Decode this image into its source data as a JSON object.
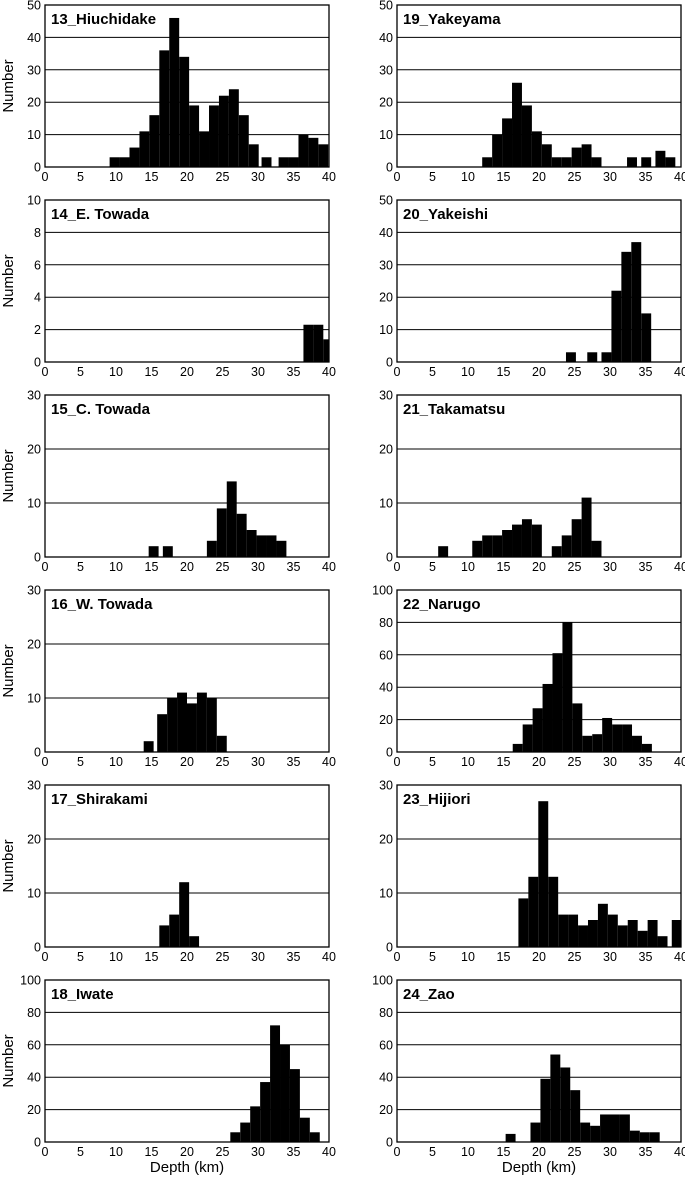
{
  "figure": {
    "ylabel": "Number",
    "xlabel": "Depth (km)",
    "x_ticks": [
      0,
      5,
      10,
      15,
      20,
      25,
      30,
      35,
      40
    ],
    "bar_color": "#000000",
    "grid_color": "#000000"
  },
  "chart_data": [
    {
      "type": "bar",
      "title": "13_Hiuchidake",
      "bin_width_km": 1.4,
      "xlim": [
        0,
        40
      ],
      "ylim": [
        0,
        50
      ],
      "y_ticks": [
        0,
        10,
        20,
        30,
        40,
        50
      ],
      "grid": true,
      "x": [
        9.8,
        11.2,
        12.6,
        14.0,
        15.4,
        16.8,
        18.2,
        19.6,
        21.0,
        22.4,
        23.8,
        25.2,
        26.6,
        28.0,
        29.4,
        31.2,
        33.6,
        35.0,
        36.4,
        37.8,
        39.2
      ],
      "values": [
        3,
        3,
        6,
        11,
        16,
        36,
        46,
        34,
        19,
        11,
        19,
        22,
        24,
        16,
        7,
        3,
        3,
        3,
        10,
        9,
        7
      ]
    },
    {
      "type": "bar",
      "title": "19_Yakeyama",
      "bin_width_km": 1.4,
      "xlim": [
        0,
        40
      ],
      "ylim": [
        0,
        50
      ],
      "y_ticks": [
        0,
        10,
        20,
        30,
        40,
        50
      ],
      "grid": true,
      "x": [
        12.7,
        14.1,
        15.5,
        16.9,
        18.3,
        19.7,
        21.1,
        22.5,
        23.9,
        25.3,
        26.7,
        28.1,
        33.1,
        35.1,
        37.1,
        38.5
      ],
      "values": [
        3,
        10,
        15,
        26,
        19,
        11,
        7,
        3,
        3,
        6,
        7,
        3,
        3,
        3,
        5,
        3
      ]
    },
    {
      "type": "bar",
      "title": "14_E. Towada",
      "bin_width_km": 1.4,
      "xlim": [
        0,
        40
      ],
      "ylim": [
        0,
        10
      ],
      "y_ticks": [
        0,
        2,
        4,
        6,
        8,
        10
      ],
      "grid": true,
      "x": [
        37.1,
        38.5,
        39.9
      ],
      "values": [
        2.3,
        2.3,
        1.4
      ]
    },
    {
      "type": "bar",
      "title": "20_Yakeishi",
      "bin_width_km": 1.4,
      "xlim": [
        0,
        40
      ],
      "ylim": [
        0,
        50
      ],
      "y_ticks": [
        0,
        10,
        20,
        30,
        40,
        50
      ],
      "grid": true,
      "x": [
        24.5,
        27.5,
        29.5,
        30.9,
        32.3,
        33.7,
        35.1
      ],
      "values": [
        3,
        3,
        3,
        22,
        34,
        37,
        15
      ]
    },
    {
      "type": "bar",
      "title": "15_C. Towada",
      "bin_width_km": 1.4,
      "xlim": [
        0,
        40
      ],
      "ylim": [
        0,
        30
      ],
      "y_ticks": [
        0,
        10,
        20,
        30
      ],
      "grid": true,
      "x": [
        15.3,
        17.3,
        23.5,
        24.9,
        26.3,
        27.7,
        29.1,
        30.5,
        31.9,
        33.3
      ],
      "values": [
        2,
        2,
        3,
        9,
        14,
        8,
        5,
        4,
        4,
        3
      ]
    },
    {
      "type": "bar",
      "title": "21_Takamatsu",
      "bin_width_km": 1.4,
      "xlim": [
        0,
        40
      ],
      "ylim": [
        0,
        30
      ],
      "y_ticks": [
        0,
        10,
        20,
        30
      ],
      "grid": true,
      "x": [
        6.5,
        11.3,
        12.7,
        14.1,
        15.5,
        16.9,
        18.3,
        19.7,
        22.5,
        23.9,
        25.3,
        26.7,
        28.1
      ],
      "values": [
        2,
        3,
        4,
        4,
        5,
        6,
        7,
        6,
        2,
        4,
        7,
        11,
        3
      ]
    },
    {
      "type": "bar",
      "title": "16_W. Towada",
      "bin_width_km": 1.4,
      "xlim": [
        0,
        40
      ],
      "ylim": [
        0,
        30
      ],
      "y_ticks": [
        0,
        10,
        20,
        30
      ],
      "grid": true,
      "x": [
        14.6,
        16.5,
        17.9,
        19.3,
        20.7,
        22.1,
        23.5,
        24.9
      ],
      "values": [
        2,
        7,
        10,
        11,
        9,
        11,
        10,
        3
      ]
    },
    {
      "type": "bar",
      "title": "22_Narugo",
      "bin_width_km": 1.4,
      "xlim": [
        0,
        40
      ],
      "ylim": [
        0,
        100
      ],
      "y_ticks": [
        0,
        20,
        40,
        60,
        80,
        100
      ],
      "grid": true,
      "x": [
        17.0,
        18.4,
        19.8,
        21.2,
        22.6,
        24.0,
        25.4,
        26.8,
        28.2,
        29.6,
        31.0,
        32.4,
        33.8,
        35.2
      ],
      "values": [
        5,
        17,
        27,
        42,
        61,
        80,
        30,
        10,
        11,
        21,
        17,
        17,
        10,
        5
      ]
    },
    {
      "type": "bar",
      "title": "17_Shirakami",
      "bin_width_km": 1.4,
      "xlim": [
        0,
        40
      ],
      "ylim": [
        0,
        30
      ],
      "y_ticks": [
        0,
        10,
        20,
        30
      ],
      "grid": true,
      "x": [
        16.8,
        18.2,
        19.6,
        21.0
      ],
      "values": [
        4,
        6,
        12,
        2
      ]
    },
    {
      "type": "bar",
      "title": "23_Hijiori",
      "bin_width_km": 1.4,
      "xlim": [
        0,
        40
      ],
      "ylim": [
        0,
        30
      ],
      "y_ticks": [
        0,
        10,
        20,
        30
      ],
      "grid": true,
      "x": [
        17.8,
        19.2,
        20.6,
        22.0,
        23.4,
        24.8,
        26.2,
        27.6,
        29.0,
        30.4,
        31.8,
        33.2,
        34.6,
        36.0,
        37.4,
        39.4
      ],
      "values": [
        9,
        13,
        27,
        13,
        6,
        6,
        4,
        5,
        8,
        6,
        4,
        5,
        3,
        5,
        2,
        5
      ]
    },
    {
      "type": "bar",
      "title": "18_Iwate",
      "bin_width_km": 1.4,
      "xlim": [
        0,
        40
      ],
      "ylim": [
        0,
        100
      ],
      "y_ticks": [
        0,
        20,
        40,
        60,
        80,
        100
      ],
      "grid": true,
      "x": [
        26.8,
        28.2,
        29.6,
        31.0,
        32.4,
        33.8,
        35.2,
        36.6,
        38.0
      ],
      "values": [
        6,
        12,
        22,
        37,
        72,
        60,
        45,
        15,
        6
      ]
    },
    {
      "type": "bar",
      "title": "24_Zao",
      "bin_width_km": 1.4,
      "xlim": [
        0,
        40
      ],
      "ylim": [
        0,
        100
      ],
      "y_ticks": [
        0,
        20,
        40,
        60,
        80,
        100
      ],
      "grid": true,
      "x": [
        16.0,
        19.5,
        20.9,
        22.3,
        23.7,
        25.1,
        26.5,
        27.9,
        29.3,
        30.7,
        32.1,
        33.5,
        34.9,
        36.3
      ],
      "values": [
        5,
        12,
        39,
        54,
        46,
        32,
        12,
        10,
        17,
        17,
        17,
        7,
        6,
        6
      ]
    }
  ]
}
